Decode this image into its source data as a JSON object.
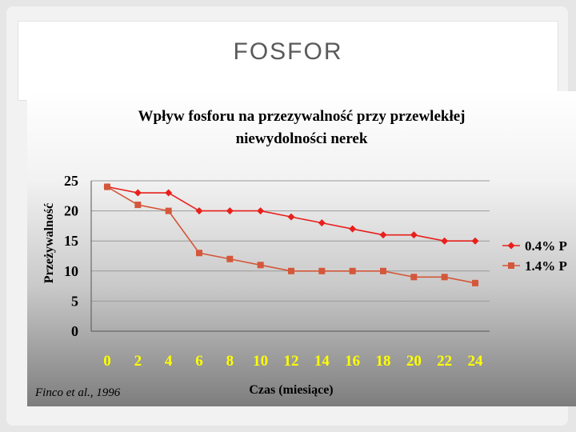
{
  "slide": {
    "title": "FOSFOR"
  },
  "footnote": "Finco et al., 1996",
  "chart_data": {
    "type": "line",
    "title": "Wpływ fosforu na przezywalność przy przewlekłej niewydolności nerek",
    "title_lines": [
      "Wpływ fosforu na przezywalność przy przewlekłej",
      "niewydolności nerek"
    ],
    "xlabel": "Czas (miesiące)",
    "ylabel": "Przeżywalność",
    "x": [
      0,
      2,
      4,
      6,
      8,
      10,
      12,
      14,
      16,
      18,
      20,
      22,
      24
    ],
    "x_tick_labels": [
      "0",
      "2",
      "4",
      "6",
      "8",
      "10",
      "12",
      "14",
      "16",
      "18",
      "20",
      "22",
      "24"
    ],
    "ylim": [
      0,
      25
    ],
    "y_ticks": [
      0,
      5,
      10,
      15,
      20,
      25
    ],
    "grid": "horizontal",
    "legend_position": "right",
    "series": [
      {
        "name": "0.4% P",
        "color": "#e8201c",
        "marker": "diamond",
        "values": [
          24,
          23,
          23,
          20,
          20,
          20,
          19,
          18,
          17,
          16,
          16,
          15,
          15
        ]
      },
      {
        "name": "1.4% P",
        "color": "#d4573a",
        "marker": "square",
        "values": [
          24,
          21,
          20,
          13,
          12,
          11,
          10,
          10,
          10,
          10,
          9,
          9,
          8
        ]
      }
    ]
  }
}
